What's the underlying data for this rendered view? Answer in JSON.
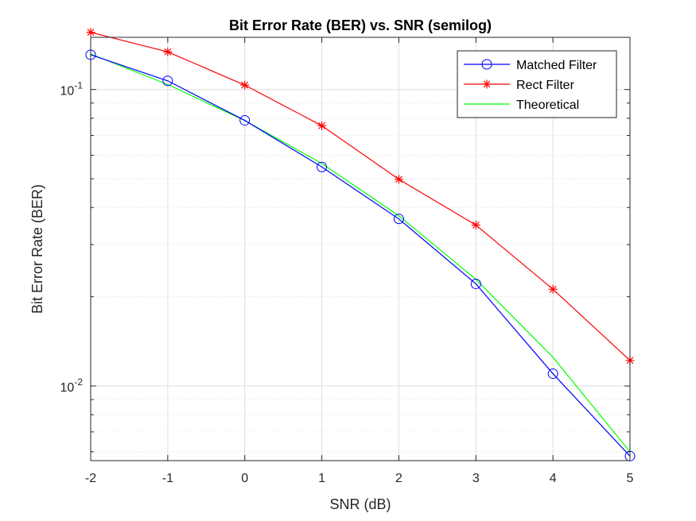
{
  "chart_data": {
    "type": "line",
    "title": "Bit Error Rate (BER) vs. SNR (semilog)",
    "xlabel": "SNR (dB)",
    "ylabel": "Bit Error Rate (BER)",
    "xlim": [
      -2,
      5
    ],
    "ylim": [
      0.0056,
      0.15
    ],
    "yscale": "log",
    "grid": true,
    "legend_position": "top-right",
    "x": [
      -2,
      -1,
      0,
      1,
      2,
      3,
      4,
      5
    ],
    "x_tick_labels": [
      "-2",
      "-1",
      "0",
      "1",
      "2",
      "3",
      "4",
      "5"
    ],
    "y_tick_labels": [
      {
        "base": "10",
        "exp": "-1",
        "value": 0.1
      },
      {
        "base": "10",
        "exp": "-2",
        "value": 0.01
      }
    ],
    "series": [
      {
        "name": "Matched Filter",
        "color": "#0000ff",
        "marker": "circle",
        "values": [
          0.131,
          0.107,
          0.0787,
          0.0548,
          0.0366,
          0.0221,
          0.011,
          0.0058
        ]
      },
      {
        "name": "Rect Filter",
        "color": "#ff0000",
        "marker": "asterisk",
        "values": [
          0.156,
          0.134,
          0.1035,
          0.0755,
          0.0498,
          0.0349,
          0.0212,
          0.0122
        ]
      },
      {
        "name": "Theoretical",
        "color": "#00ff00",
        "marker": "none",
        "values": [
          0.1318,
          0.104,
          0.0786,
          0.0563,
          0.0375,
          0.0229,
          0.0125,
          0.006
        ]
      }
    ]
  }
}
